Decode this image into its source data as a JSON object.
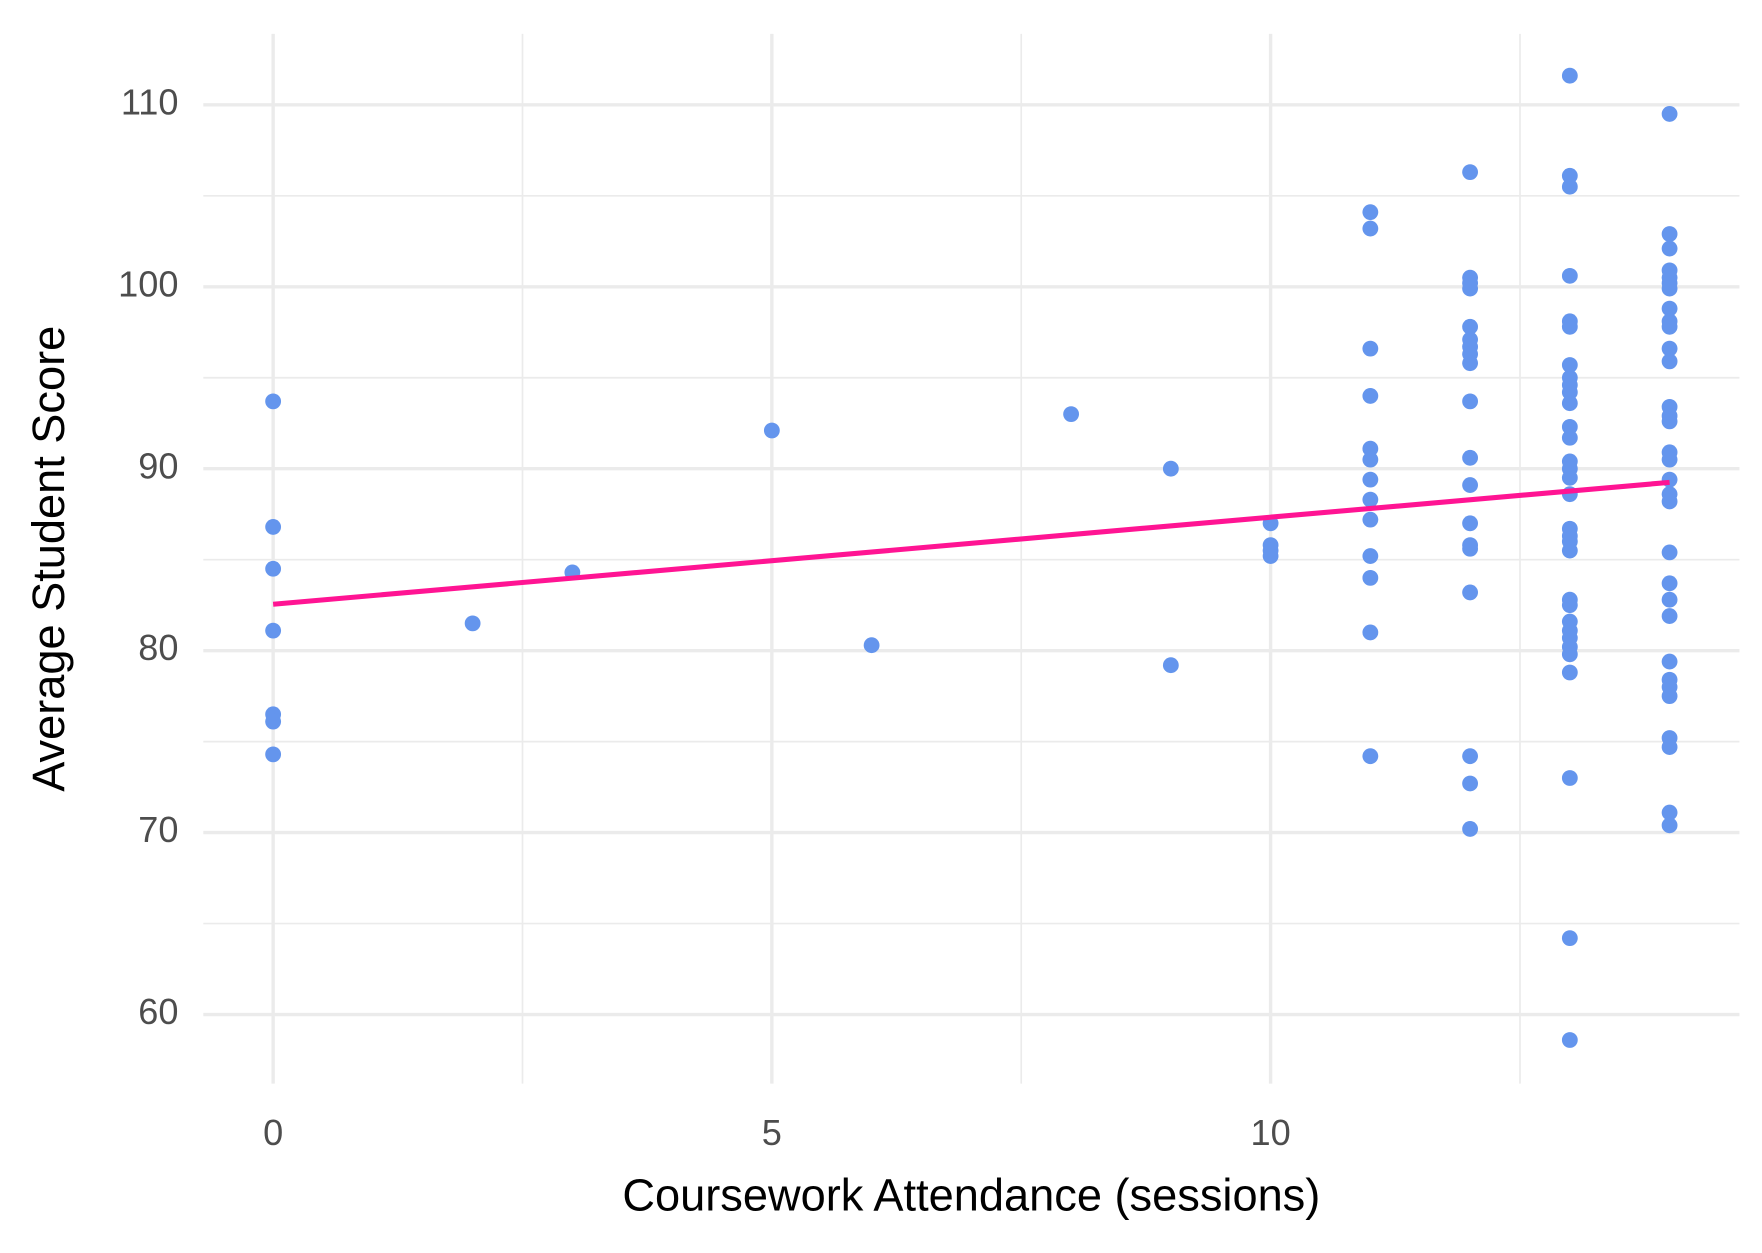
{
  "chart_data": {
    "type": "scatter",
    "x_label": "Coursework Attendance (sessions)",
    "y_label": "Average Student Score",
    "color": "#6495ed",
    "x": [
      0,
      0,
      0,
      0,
      0,
      0,
      0,
      2,
      3,
      5,
      6,
      8,
      9,
      9,
      10,
      10,
      10,
      10,
      11,
      11,
      11,
      11,
      11,
      11,
      11,
      11,
      11,
      11,
      11,
      11,
      11,
      12,
      12,
      12,
      12,
      12,
      12,
      12,
      12,
      12,
      12,
      12,
      12,
      12,
      12,
      12,
      12,
      12,
      12,
      12,
      13,
      13,
      13,
      13,
      13,
      13,
      13,
      13,
      13,
      13,
      13,
      13,
      13,
      13,
      13,
      13,
      13,
      13,
      13,
      13,
      13,
      13,
      13,
      13,
      13,
      13,
      13,
      13,
      13,
      13,
      13,
      13,
      14,
      14,
      14,
      14,
      14,
      14,
      14,
      14,
      14,
      14,
      14,
      14,
      14,
      14,
      14,
      14,
      14,
      14,
      14,
      14,
      14,
      14,
      14,
      14,
      14,
      14,
      14,
      14,
      14,
      14,
      14,
      14
    ],
    "values": [
      93.7,
      86.8,
      84.5,
      81.1,
      76.5,
      76.1,
      74.3,
      81.5,
      84.3,
      92.1,
      80.3,
      93.0,
      90.0,
      79.2,
      87.0,
      85.8,
      85.5,
      85.2,
      104.1,
      103.2,
      96.6,
      94.0,
      91.1,
      90.5,
      89.4,
      88.3,
      87.2,
      85.2,
      84.0,
      81.0,
      74.2,
      106.3,
      100.5,
      100.2,
      99.9,
      97.8,
      97.1,
      96.7,
      96.3,
      95.8,
      93.7,
      90.6,
      89.1,
      87.0,
      85.8,
      85.6,
      83.2,
      74.2,
      72.7,
      70.2,
      111.6,
      106.1,
      105.5,
      100.6,
      98.1,
      97.8,
      95.7,
      95.0,
      94.6,
      94.2,
      93.6,
      92.3,
      91.7,
      90.4,
      90.0,
      89.5,
      88.6,
      86.7,
      86.3,
      86.0,
      85.5,
      82.8,
      82.5,
      81.6,
      81.1,
      80.7,
      80.2,
      79.8,
      78.8,
      73.0,
      64.2,
      58.6,
      109.5,
      102.9,
      102.1,
      100.9,
      100.5,
      100.2,
      99.9,
      98.8,
      98.1,
      97.8,
      96.6,
      95.9,
      93.4,
      92.9,
      92.6,
      90.9,
      90.5,
      89.4,
      88.6,
      88.2,
      85.4,
      83.7,
      82.8,
      81.9,
      79.4,
      78.4,
      78.0,
      77.5,
      75.2,
      74.7,
      71.1,
      70.4
    ],
    "trend_line": {
      "x": [
        0,
        14
      ],
      "values": [
        82.55,
        89.25
      ],
      "color": "#ff1493"
    },
    "xlim": [
      -0.7,
      14.7
    ],
    "ylim": [
      56.2,
      113.9
    ],
    "xticks": [
      0,
      5,
      10
    ],
    "yticks": [
      60,
      70,
      80,
      90,
      100,
      110
    ],
    "minor_xticks": [
      2.5,
      7.5,
      12.5
    ],
    "minor_yticks": [
      65,
      75,
      85,
      95,
      105
    ],
    "grid": true
  }
}
